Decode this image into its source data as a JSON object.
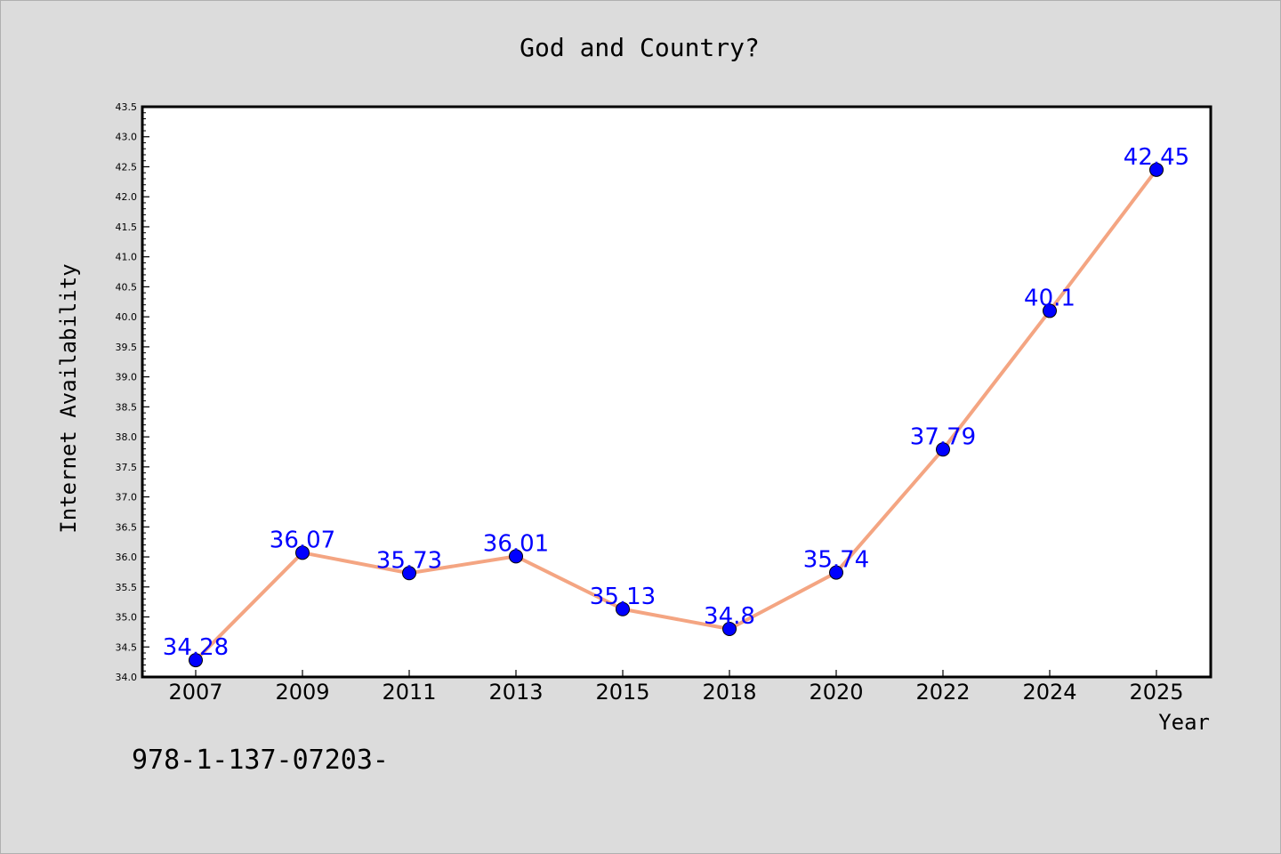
{
  "chart_data": {
    "type": "line",
    "title": "God and Country?",
    "xlabel": "Year",
    "ylabel": "Internet Availability",
    "categories": [
      "2007",
      "2009",
      "2011",
      "2013",
      "2015",
      "2018",
      "2020",
      "2022",
      "2024",
      "2025"
    ],
    "series": [
      {
        "values": [
          34.28,
          36.07,
          35.73,
          36.01,
          35.13,
          34.8,
          35.74,
          37.79,
          40.1,
          42.45
        ],
        "labels": [
          "34.28",
          "36.07",
          "35.73",
          "36.01",
          "35.13",
          "34.8",
          "35.74",
          "37.79",
          "40.1",
          "42.45"
        ],
        "line_color": "#f4a582",
        "marker_color": "#0000ff"
      }
    ],
    "ylim": [
      34.0,
      43.5
    ],
    "yticks": [
      "34.0",
      "34.5",
      "35.0",
      "35.5",
      "36.0",
      "36.5",
      "37.0",
      "37.5",
      "38.0",
      "38.5",
      "39.0",
      "39.5",
      "40.0",
      "40.5",
      "41.0",
      "41.5",
      "42.0",
      "42.5",
      "43.0",
      "43.5"
    ],
    "grid": false,
    "label_color": "#0000ff"
  },
  "footnote": "978-1-137-07203-"
}
